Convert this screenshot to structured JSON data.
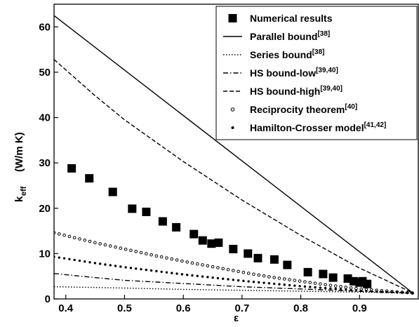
{
  "chart_data": {
    "type": "scatter",
    "xlabel": "ε",
    "ylabel_main": "k",
    "ylabel_sub": "eff",
    "ylabel_unit": "(W/m K)",
    "xlim": [
      0.38,
      1.0
    ],
    "ylim": [
      0,
      65
    ],
    "xticks": [
      0.4,
      0.5,
      0.6,
      0.7,
      0.8,
      0.9
    ],
    "yticks": [
      0,
      10,
      20,
      30,
      40,
      50,
      60
    ],
    "grid": false,
    "legend_position": "top-right",
    "series": [
      {
        "name": "Numerical results",
        "ref": "",
        "style": "filled-square",
        "x": [
          0.41,
          0.44,
          0.48,
          0.513,
          0.537,
          0.565,
          0.588,
          0.618,
          0.633,
          0.648,
          0.66,
          0.685,
          0.71,
          0.727,
          0.755,
          0.777,
          0.812,
          0.838,
          0.855,
          0.88,
          0.89,
          0.9,
          0.905,
          0.913
        ],
        "y": [
          28.8,
          26.6,
          23.6,
          19.9,
          19.2,
          17.1,
          15.8,
          14.3,
          12.9,
          12.2,
          12.4,
          11.0,
          10.0,
          9.0,
          8.7,
          7.5,
          5.9,
          5.5,
          4.7,
          4.5,
          3.9,
          3.6,
          3.9,
          3.3
        ]
      },
      {
        "name": "Parallel bound",
        "ref": "[38]",
        "style": "solid",
        "x": [
          0.38,
          0.99
        ],
        "y": [
          62.5,
          1.4
        ]
      },
      {
        "name": "Series bound",
        "ref": "[38]",
        "style": "dotted",
        "x": [
          0.38,
          0.5,
          0.6,
          0.7,
          0.8,
          0.9,
          0.99
        ],
        "y": [
          2.7,
          2.4,
          2.1,
          1.9,
          1.7,
          1.5,
          1.3
        ]
      },
      {
        "name": "HS bound-low",
        "ref": "[39,40]",
        "style": "dashdot",
        "x": [
          0.38,
          0.45,
          0.5,
          0.6,
          0.7,
          0.8,
          0.9,
          0.99
        ],
        "y": [
          5.6,
          4.7,
          4.1,
          3.4,
          2.7,
          2.2,
          1.7,
          1.3
        ]
      },
      {
        "name": "HS bound-high",
        "ref": "[39,40]",
        "style": "dashed",
        "x": [
          0.38,
          0.45,
          0.5,
          0.6,
          0.7,
          0.8,
          0.9,
          0.99
        ],
        "y": [
          52.8,
          44.8,
          39.5,
          30.3,
          21.8,
          14.0,
          6.8,
          1.4
        ]
      },
      {
        "name": "Reciprocity theorem",
        "ref": "[40]",
        "style": "open-circle-dots",
        "x": [
          0.38,
          0.45,
          0.5,
          0.55,
          0.6,
          0.65,
          0.7,
          0.75,
          0.8,
          0.85,
          0.9,
          0.95,
          0.99
        ],
        "y": [
          14.6,
          12.4,
          11.0,
          9.6,
          8.3,
          7.1,
          5.9,
          4.8,
          3.9,
          3.0,
          2.2,
          1.7,
          1.3
        ]
      },
      {
        "name": "Hamilton-Crosser model",
        "ref": "[41,42]",
        "style": "filled-dots",
        "x": [
          0.38,
          0.45,
          0.5,
          0.55,
          0.6,
          0.65,
          0.7,
          0.75,
          0.8,
          0.85,
          0.9,
          0.95,
          0.99
        ],
        "y": [
          9.3,
          7.9,
          7.0,
          6.2,
          5.4,
          4.7,
          4.0,
          3.4,
          2.8,
          2.3,
          1.8,
          1.5,
          1.3
        ]
      }
    ]
  }
}
